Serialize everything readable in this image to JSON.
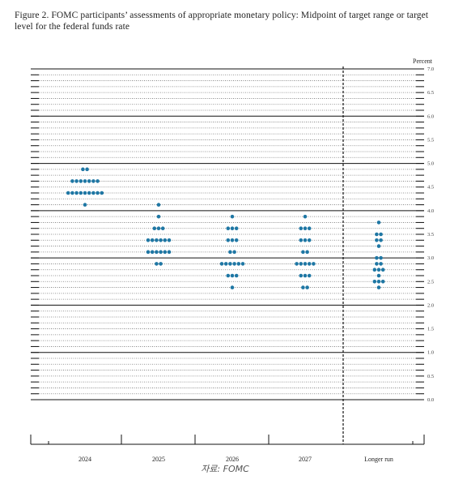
{
  "figure": {
    "title": "Figure 2.  FOMC participants’ assessments of appropriate monetary policy:  Midpoint of target range or target level for the federal funds rate",
    "source": "자료: FOMC"
  },
  "chart_data": {
    "type": "scatter",
    "title": "Figure 2.  FOMC participants’ assessments of appropriate monetary policy:  Midpoint of target range or target level for the federal funds rate",
    "ylabel": "Percent",
    "xlabel": "",
    "ylim": [
      0,
      7
    ],
    "y_ticks": [
      "0.0",
      "0.5",
      "1.0",
      "1.5",
      "2.0",
      "2.5",
      "3.0",
      "3.5",
      "4.0",
      "4.5",
      "5.0",
      "5.5",
      "6.0",
      "6.5",
      "7.0"
    ],
    "categories": [
      "2024",
      "2025",
      "2026",
      "2027",
      "Longer run"
    ],
    "dot_color": "#1f77a4",
    "grid": "solid lines at whole percents, dotted lines every 0.125",
    "dots": [
      {
        "category": "2024",
        "points": [
          {
            "y": 4.875,
            "n": 2
          },
          {
            "y": 4.625,
            "n": 7
          },
          {
            "y": 4.375,
            "n": 9
          },
          {
            "y": 4.125,
            "n": 1
          }
        ]
      },
      {
        "category": "2025",
        "points": [
          {
            "y": 4.125,
            "n": 1
          },
          {
            "y": 3.875,
            "n": 1
          },
          {
            "y": 3.625,
            "n": 3
          },
          {
            "y": 3.375,
            "n": 6
          },
          {
            "y": 3.125,
            "n": 6
          },
          {
            "y": 2.875,
            "n": 2
          }
        ]
      },
      {
        "category": "2026",
        "points": [
          {
            "y": 3.875,
            "n": 1
          },
          {
            "y": 3.625,
            "n": 3
          },
          {
            "y": 3.375,
            "n": 3
          },
          {
            "y": 3.125,
            "n": 2
          },
          {
            "y": 2.875,
            "n": 6
          },
          {
            "y": 2.625,
            "n": 3
          },
          {
            "y": 2.375,
            "n": 1
          }
        ]
      },
      {
        "category": "2027",
        "points": [
          {
            "y": 3.875,
            "n": 1
          },
          {
            "y": 3.625,
            "n": 3
          },
          {
            "y": 3.375,
            "n": 3
          },
          {
            "y": 3.125,
            "n": 2
          },
          {
            "y": 2.875,
            "n": 5
          },
          {
            "y": 2.625,
            "n": 3
          },
          {
            "y": 2.375,
            "n": 2
          }
        ]
      },
      {
        "category": "Longer run",
        "points": [
          {
            "y": 3.75,
            "n": 1
          },
          {
            "y": 3.5,
            "n": 2
          },
          {
            "y": 3.375,
            "n": 2
          },
          {
            "y": 3.25,
            "n": 1
          },
          {
            "y": 3.0,
            "n": 2
          },
          {
            "y": 2.875,
            "n": 2
          },
          {
            "y": 2.75,
            "n": 3
          },
          {
            "y": 2.625,
            "n": 1
          },
          {
            "y": 2.5,
            "n": 3
          },
          {
            "y": 2.375,
            "n": 1
          }
        ]
      }
    ]
  }
}
